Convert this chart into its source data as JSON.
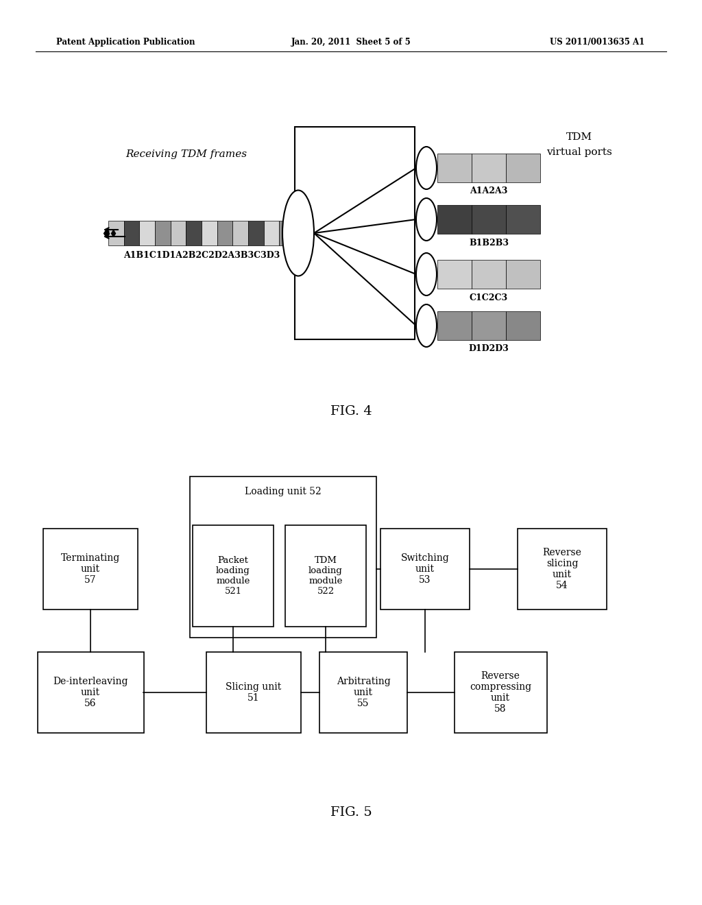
{
  "bg_color": "#ffffff",
  "header_left": "Patent Application Publication",
  "header_center": "Jan. 20, 2011  Sheet 5 of 5",
  "header_right": "US 2011/0013635 A1",
  "fig4_label": "FIG. 4",
  "fig5_label": "FIG. 5",
  "fig4_title_tdm": "TDM",
  "fig4_title_vp": "virtual ports",
  "fig4_receiving": "Receiving TDM frames",
  "fig4_frame_labels": "A1B1C1D1A2B2C2D2A3B3C3D3",
  "fig4_port_labels": [
    "A1A2A3",
    "B1B2B3",
    "C1C2C3",
    "D1D2D3"
  ],
  "cell_colors_A": "#c8c8c8",
  "cell_colors_B": "#484848",
  "cell_colors_C": "#d8d8d8",
  "cell_colors_D": "#909090",
  "port_colors": [
    [
      "#c0c0c0",
      "#c8c8c8",
      "#b8b8b8"
    ],
    [
      "#404040",
      "#484848",
      "#505050"
    ],
    [
      "#d0d0d0",
      "#c8c8c8",
      "#c0c0c0"
    ],
    [
      "#909090",
      "#989898",
      "#888888"
    ]
  ]
}
